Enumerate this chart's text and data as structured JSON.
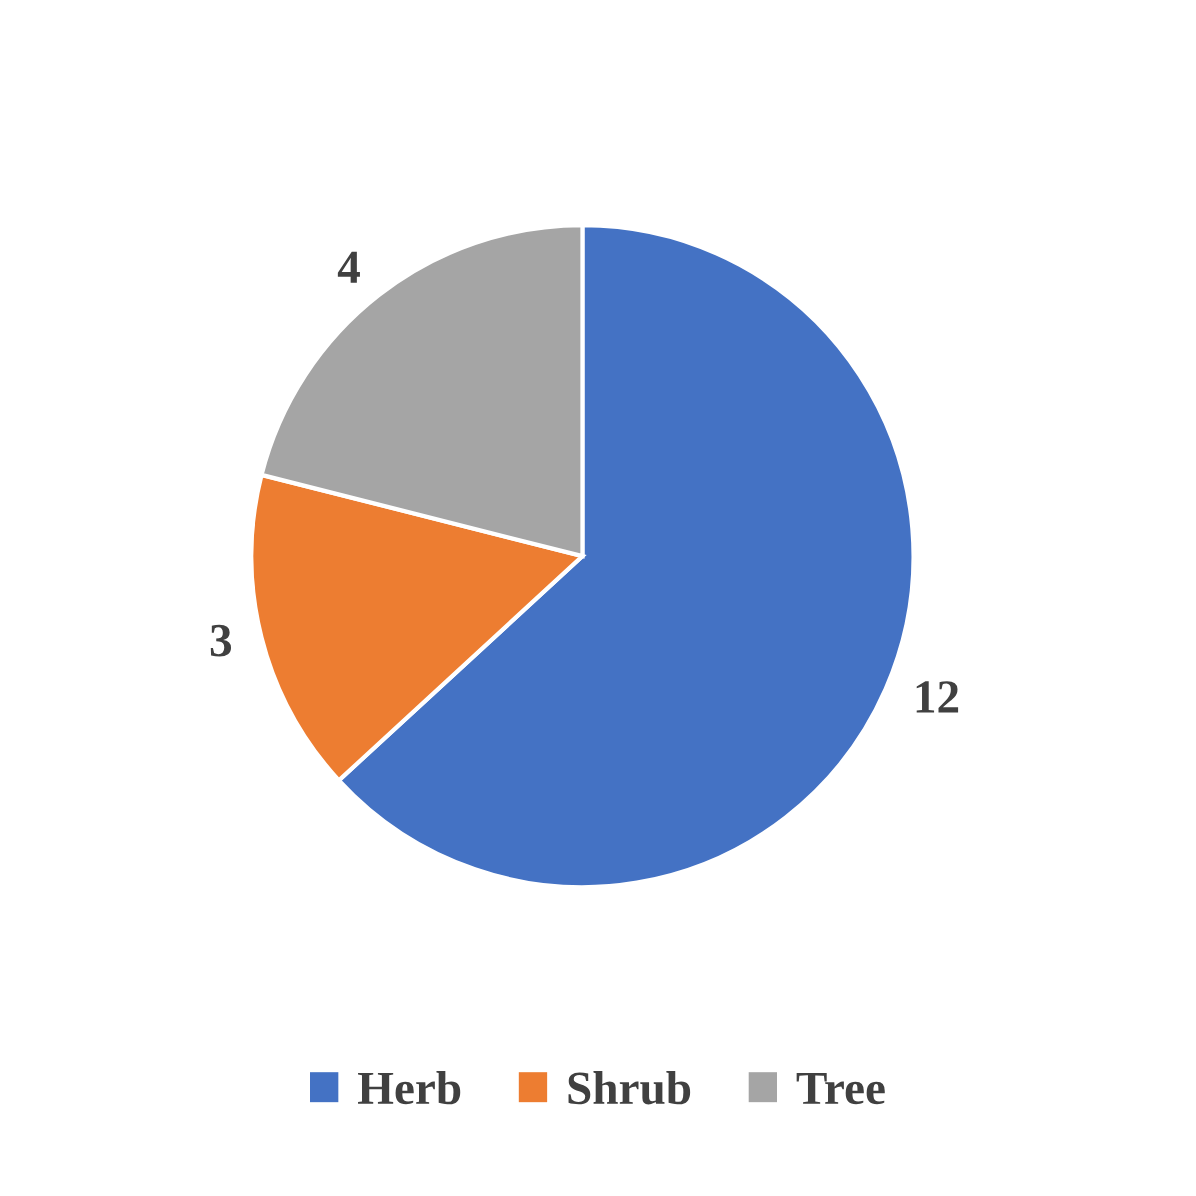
{
  "chart_data": {
    "type": "pie",
    "categories": [
      "Herb",
      "Shrub",
      "Tree"
    ],
    "values": [
      12,
      3,
      4
    ],
    "colors": [
      "#4472c4",
      "#ed7d31",
      "#a5a5a5"
    ],
    "data_labels": true,
    "legend": "bottom"
  }
}
